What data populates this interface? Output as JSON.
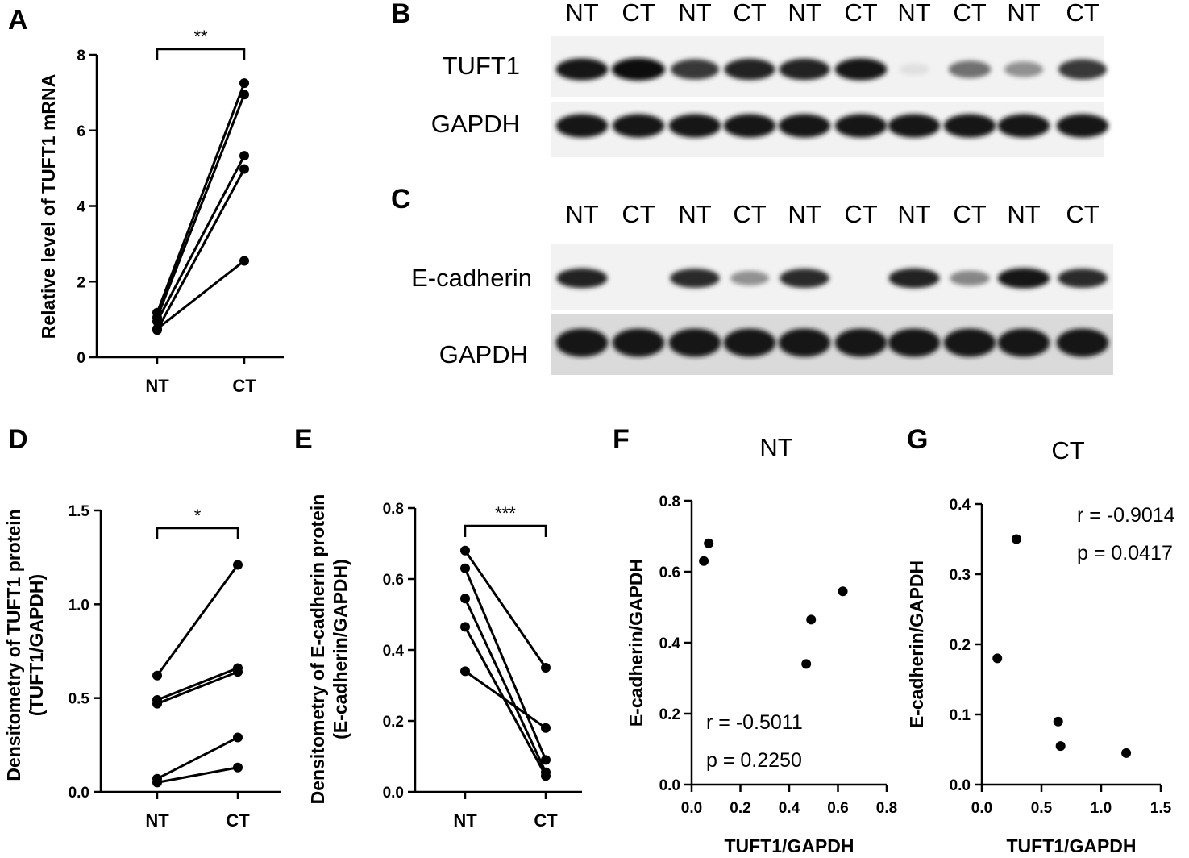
{
  "chart_data": [
    {
      "panel": "A",
      "type": "line",
      "categories": [
        "NT",
        "CT"
      ],
      "ylabel": "Relative level of TUFT1 mRNA",
      "ylim": [
        0,
        8
      ],
      "yticks": [
        "0",
        "2",
        "4",
        "6",
        "8"
      ],
      "significance": "**",
      "series": [
        {
          "values": [
            1.18,
            7.25
          ]
        },
        {
          "values": [
            1.05,
            6.95
          ]
        },
        {
          "values": [
            0.95,
            5.33
          ]
        },
        {
          "values": [
            0.72,
            4.98
          ]
        },
        {
          "values": [
            0.75,
            2.55
          ]
        }
      ]
    },
    {
      "panel": "D",
      "type": "line",
      "categories": [
        "NT",
        "CT"
      ],
      "ylabel": [
        "Densitometry of TUFT1 protein",
        "(TUFT1/GAPDH)"
      ],
      "ylim": [
        0,
        1.5
      ],
      "yticks": [
        "0.0",
        "0.5",
        "1.0",
        "1.5"
      ],
      "significance": "*",
      "series": [
        {
          "values": [
            0.62,
            1.21
          ]
        },
        {
          "values": [
            0.49,
            0.66
          ]
        },
        {
          "values": [
            0.47,
            0.64
          ]
        },
        {
          "values": [
            0.07,
            0.29
          ]
        },
        {
          "values": [
            0.05,
            0.13
          ]
        }
      ]
    },
    {
      "panel": "E",
      "type": "line",
      "categories": [
        "NT",
        "CT"
      ],
      "ylabel": [
        "Densitometry of E-cadherin protein",
        "(E-cadherin/GAPDH)"
      ],
      "ylim": [
        0,
        0.8
      ],
      "yticks": [
        "0.0",
        "0.2",
        "0.4",
        "0.6",
        "0.8"
      ],
      "significance": "***",
      "series": [
        {
          "values": [
            0.68,
            0.35
          ]
        },
        {
          "values": [
            0.63,
            0.09
          ]
        },
        {
          "values": [
            0.545,
            0.055
          ]
        },
        {
          "values": [
            0.465,
            0.045
          ]
        },
        {
          "values": [
            0.34,
            0.18
          ]
        }
      ]
    },
    {
      "panel": "F",
      "type": "scatter",
      "title": "NT",
      "xlabel": "TUFT1/GAPDH",
      "ylabel": "E-cadherin/GAPDH",
      "xlim": [
        0,
        0.8
      ],
      "ylim": [
        0,
        0.8
      ],
      "xticks": [
        "0.0",
        "0.2",
        "0.4",
        "0.6",
        "0.8"
      ],
      "yticks": [
        "0.0",
        "0.2",
        "0.4",
        "0.6",
        "0.8"
      ],
      "r_text": "r = -0.5011",
      "p_text": "p = 0.2250",
      "x": [
        0.05,
        0.07,
        0.47,
        0.49,
        0.62
      ],
      "y": [
        0.63,
        0.68,
        0.34,
        0.465,
        0.545
      ]
    },
    {
      "panel": "G",
      "type": "scatter",
      "title": "CT",
      "xlabel": "TUFT1/GAPDH",
      "ylabel": "E-cadherin/GAPDH",
      "xlim": [
        0,
        1.5
      ],
      "ylim": [
        0,
        0.4
      ],
      "xticks": [
        "0.0",
        "0.5",
        "1.0",
        "1.5"
      ],
      "yticks": [
        "0.0",
        "0.1",
        "0.2",
        "0.3",
        "0.4"
      ],
      "r_text": "r = -0.9014",
      "p_text": "p = 0.0417",
      "x": [
        0.13,
        0.29,
        0.64,
        0.66,
        1.21
      ],
      "y": [
        0.18,
        0.35,
        0.09,
        0.055,
        0.045
      ]
    }
  ],
  "blots": {
    "B": {
      "lanes": [
        "NT",
        "CT",
        "NT",
        "CT",
        "NT",
        "CT",
        "NT",
        "CT",
        "NT",
        "CT"
      ],
      "row_labels": [
        "TUFT1",
        "GAPDH"
      ],
      "band_intensity": [
        [
          0.95,
          1.0,
          0.8,
          0.9,
          0.9,
          0.95,
          0.05,
          0.55,
          0.4,
          0.8
        ],
        [
          0.95,
          0.95,
          0.95,
          0.95,
          0.95,
          0.95,
          0.95,
          0.95,
          0.95,
          0.95
        ]
      ]
    },
    "C": {
      "lanes": [
        "NT",
        "CT",
        "NT",
        "CT",
        "NT",
        "CT",
        "NT",
        "CT",
        "NT",
        "CT"
      ],
      "row_labels": [
        "E-cadherin",
        "GAPDH"
      ],
      "band_intensity": [
        [
          0.9,
          0.0,
          0.85,
          0.4,
          0.85,
          0.0,
          0.9,
          0.45,
          0.95,
          0.85
        ],
        [
          0.95,
          0.95,
          0.95,
          0.95,
          0.95,
          0.95,
          0.95,
          0.95,
          0.95,
          0.95
        ]
      ]
    }
  },
  "panel_labels": [
    "A",
    "B",
    "C",
    "D",
    "E",
    "F",
    "G"
  ]
}
